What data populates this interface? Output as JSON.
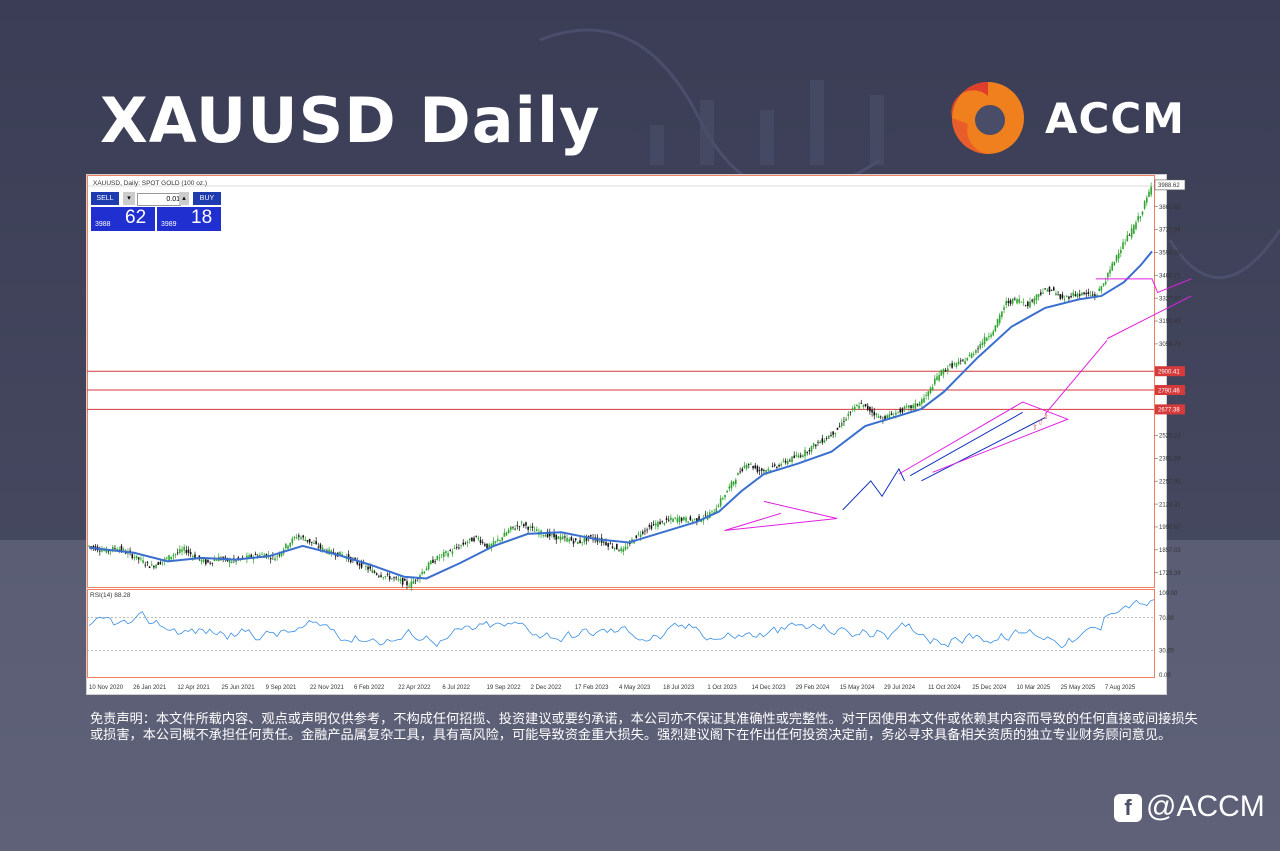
{
  "page": {
    "title": "XAUUSD Daily",
    "brand": "ACCM",
    "footer_handle": "@ACCM",
    "disclaimer": "免责声明：本文件所载内容、观点或声明仅供参考，不构成任何招揽、投资建议或要约承诺，本公司亦不保证其准确性或完整性。对于因使用本文件或依赖其内容而导致的任何直接或间接损失或损害，本公司概不承担任何责任。金融产品属复杂工具，具有高风险，可能导致资金重大损失。强烈建议阁下在作出任何投资决定前，务必寻求具备相关资质的独立专业财务顾问意见。"
  },
  "colors": {
    "background": "#4d5068",
    "brand_orange": "#f07f1e",
    "brand_red": "#e03e2d",
    "candle_up": "#2fa32f",
    "candle_down": "#111111",
    "ma_line": "#3a6fd0",
    "rsi_line": "#3b8fe0",
    "pattern_magenta": "#e020e0",
    "pattern_blue": "#1030c0",
    "level_line": "#d63a3a"
  },
  "trade_panel": {
    "sell_label": "SELL",
    "buy_label": "BUY",
    "lot": "0.01",
    "sell_small": "3988",
    "sell_big": "62",
    "buy_small": "3989",
    "buy_big": "18"
  },
  "chart_data": [
    {
      "type": "candlestick",
      "header": "XAUUSD, Daily: SPOT GOLD (100 oz.)",
      "price_ticks": [
        "3861.63",
        "3727.99",
        "3594.35",
        "3460.71",
        "3327.07",
        "3193.43",
        "3059.79",
        "2525.23",
        "2391.59",
        "2257.95",
        "2124.31",
        "1990.67",
        "1857.03",
        "1723.39"
      ],
      "current_price": "3988.62",
      "levels": [
        {
          "label": "2900.41",
          "value": 2900.41
        },
        {
          "label": "2790.46",
          "value": 2790.46
        },
        {
          "label": "2677.38",
          "value": 2677.38
        }
      ],
      "x_ticks": [
        "10 Nov 2020",
        "26 Jan 2021",
        "12 Apr 2021",
        "25 Jun 2021",
        "9 Sep 2021",
        "22 Nov 2021",
        "6 Feb 2022",
        "22 Apr 2022",
        "6 Jul 2022",
        "19 Sep 2022",
        "2 Dec 2022",
        "17 Feb 2023",
        "4 May 2023",
        "18 Jul 2023",
        "1 Oct 2023",
        "14 Dec 2023",
        "29 Feb 2024",
        "15 May 2024",
        "29 Jul 2024",
        "11 Oct 2024",
        "25 Dec 2024",
        "10 Mar 2025",
        "25 May 2025",
        "7 Aug 2025"
      ],
      "close_path": [
        [
          0,
          1880
        ],
        [
          3,
          1850
        ],
        [
          5,
          1870
        ],
        [
          7,
          1835
        ],
        [
          9,
          1800
        ],
        [
          11,
          1760
        ],
        [
          13,
          1790
        ],
        [
          15,
          1830
        ],
        [
          17,
          1860
        ],
        [
          19,
          1810
        ],
        [
          21,
          1780
        ],
        [
          23,
          1810
        ],
        [
          25,
          1790
        ],
        [
          27,
          1800
        ],
        [
          29,
          1820
        ],
        [
          31,
          1830
        ],
        [
          33,
          1810
        ],
        [
          35,
          1880
        ],
        [
          37,
          1940
        ],
        [
          39,
          1910
        ],
        [
          41,
          1870
        ],
        [
          43,
          1840
        ],
        [
          45,
          1830
        ],
        [
          47,
          1790
        ],
        [
          49,
          1760
        ],
        [
          51,
          1720
        ],
        [
          53,
          1700
        ],
        [
          55,
          1680
        ],
        [
          57,
          1650
        ],
        [
          59,
          1720
        ],
        [
          61,
          1790
        ],
        [
          63,
          1830
        ],
        [
          65,
          1860
        ],
        [
          67,
          1900
        ],
        [
          69,
          1930
        ],
        [
          71,
          1870
        ],
        [
          73,
          1920
        ],
        [
          75,
          1980
        ],
        [
          77,
          2010
        ],
        [
          79,
          1970
        ],
        [
          81,
          1950
        ],
        [
          83,
          1930
        ],
        [
          85,
          1920
        ],
        [
          87,
          1900
        ],
        [
          89,
          1930
        ],
        [
          91,
          1910
        ],
        [
          93,
          1880
        ],
        [
          95,
          1850
        ],
        [
          97,
          1930
        ],
        [
          99,
          1980
        ],
        [
          101,
          2010
        ],
        [
          103,
          2030
        ],
        [
          105,
          2040
        ],
        [
          107,
          2030
        ],
        [
          109,
          2040
        ],
        [
          111,
          2080
        ],
        [
          113,
          2180
        ],
        [
          115,
          2280
        ],
        [
          117,
          2370
        ],
        [
          119,
          2320
        ],
        [
          121,
          2330
        ],
        [
          123,
          2360
        ],
        [
          125,
          2390
        ],
        [
          127,
          2420
        ],
        [
          129,
          2470
        ],
        [
          131,
          2510
        ],
        [
          133,
          2560
        ],
        [
          135,
          2650
        ],
        [
          137,
          2710
        ],
        [
          139,
          2670
        ],
        [
          141,
          2620
        ],
        [
          143,
          2650
        ],
        [
          145,
          2680
        ],
        [
          147,
          2700
        ],
        [
          149,
          2760
        ],
        [
          151,
          2880
        ],
        [
          153,
          2930
        ],
        [
          155,
          2950
        ],
        [
          157,
          3000
        ],
        [
          159,
          3080
        ],
        [
          161,
          3150
        ],
        [
          163,
          3300
        ],
        [
          165,
          3320
        ],
        [
          167,
          3290
        ],
        [
          169,
          3360
        ],
        [
          171,
          3380
        ],
        [
          173,
          3320
        ],
        [
          175,
          3350
        ],
        [
          177,
          3350
        ],
        [
          179,
          3340
        ],
        [
          181,
          3450
        ],
        [
          183,
          3600
        ],
        [
          185,
          3700
        ],
        [
          187,
          3820
        ],
        [
          189,
          3988
        ]
      ],
      "ma_path": [
        [
          0,
          1870
        ],
        [
          8,
          1840
        ],
        [
          14,
          1790
        ],
        [
          20,
          1810
        ],
        [
          26,
          1800
        ],
        [
          32,
          1820
        ],
        [
          38,
          1880
        ],
        [
          44,
          1830
        ],
        [
          50,
          1770
        ],
        [
          56,
          1700
        ],
        [
          60,
          1690
        ],
        [
          66,
          1780
        ],
        [
          72,
          1880
        ],
        [
          78,
          1950
        ],
        [
          84,
          1960
        ],
        [
          90,
          1920
        ],
        [
          96,
          1900
        ],
        [
          102,
          1960
        ],
        [
          108,
          2020
        ],
        [
          112,
          2080
        ],
        [
          116,
          2200
        ],
        [
          120,
          2300
        ],
        [
          126,
          2360
        ],
        [
          132,
          2430
        ],
        [
          138,
          2580
        ],
        [
          144,
          2640
        ],
        [
          148,
          2680
        ],
        [
          152,
          2780
        ],
        [
          158,
          2980
        ],
        [
          164,
          3160
        ],
        [
          170,
          3270
        ],
        [
          176,
          3320
        ],
        [
          180,
          3340
        ],
        [
          184,
          3420
        ],
        [
          187,
          3520
        ],
        [
          189,
          3600
        ]
      ],
      "rsi_label": "RSI(14) 88.28",
      "rsi_ticks": [
        "100.00",
        "70.00",
        "30.00",
        "0.00"
      ],
      "rsi_current": 88.28
    }
  ]
}
